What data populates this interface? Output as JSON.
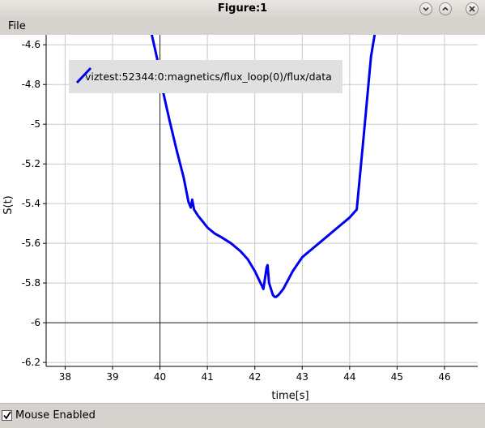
{
  "window": {
    "title": "Figure:1"
  },
  "menu": {
    "file": "File"
  },
  "status": {
    "mouse_enabled_label": "Mouse Enabled",
    "mouse_enabled": true
  },
  "icons": {
    "minimize": "chevron-down-icon",
    "maximize": "chevron-up-icon",
    "close": "close-icon",
    "checkbox": "check-icon"
  },
  "colors": {
    "line": "#0000ee",
    "grid": "#c8c8c8",
    "axis_line": "#222222",
    "legend_bg": "#e0e0e0"
  },
  "chart_data": {
    "type": "line",
    "xlabel": "time[s]",
    "ylabel": "S(t)",
    "xlim": [
      37.6,
      46.7
    ],
    "ylim": [
      -6.22,
      -4.55
    ],
    "xticks": [
      38,
      39,
      40,
      41,
      42,
      43,
      44,
      45,
      46
    ],
    "yticks": [
      -4.6,
      -4.8,
      -5,
      -5.2,
      -5.4,
      -5.6,
      -5.8,
      -6,
      -6.2
    ],
    "ytick_labels": [
      "-4.6",
      "-4.8",
      "-5",
      "-5.2",
      "-5.4",
      "-5.6",
      "-5.8",
      "-6",
      "-6.2"
    ],
    "grid": true,
    "zero_lines": {
      "x": 40,
      "y": -6
    },
    "legend": {
      "position": "top-left"
    },
    "series": [
      {
        "name": "viztest:52344:0:magnetics/flux_loop(0)/flux/data",
        "color": "#0000ee",
        "x": [
          39.82,
          39.95,
          40.05,
          40.2,
          40.35,
          40.5,
          40.6,
          40.65,
          40.68,
          40.72,
          40.8,
          40.9,
          41.0,
          41.15,
          41.3,
          41.5,
          41.7,
          41.85,
          42.0,
          42.1,
          42.18,
          42.25,
          42.27,
          42.3,
          42.38,
          42.42,
          42.45,
          42.5,
          42.6,
          42.8,
          43.0,
          43.2,
          43.5,
          43.8,
          44.0,
          44.15,
          44.3,
          44.45,
          44.56
        ],
        "y": [
          -4.54,
          -4.68,
          -4.82,
          -4.98,
          -5.13,
          -5.27,
          -5.39,
          -5.42,
          -5.38,
          -5.43,
          -5.46,
          -5.49,
          -5.52,
          -5.55,
          -5.57,
          -5.6,
          -5.64,
          -5.68,
          -5.74,
          -5.79,
          -5.83,
          -5.72,
          -5.71,
          -5.8,
          -5.86,
          -5.87,
          -5.87,
          -5.86,
          -5.83,
          -5.74,
          -5.67,
          -5.63,
          -5.57,
          -5.51,
          -5.47,
          -5.43,
          -5.05,
          -4.66,
          -4.5
        ]
      }
    ]
  }
}
